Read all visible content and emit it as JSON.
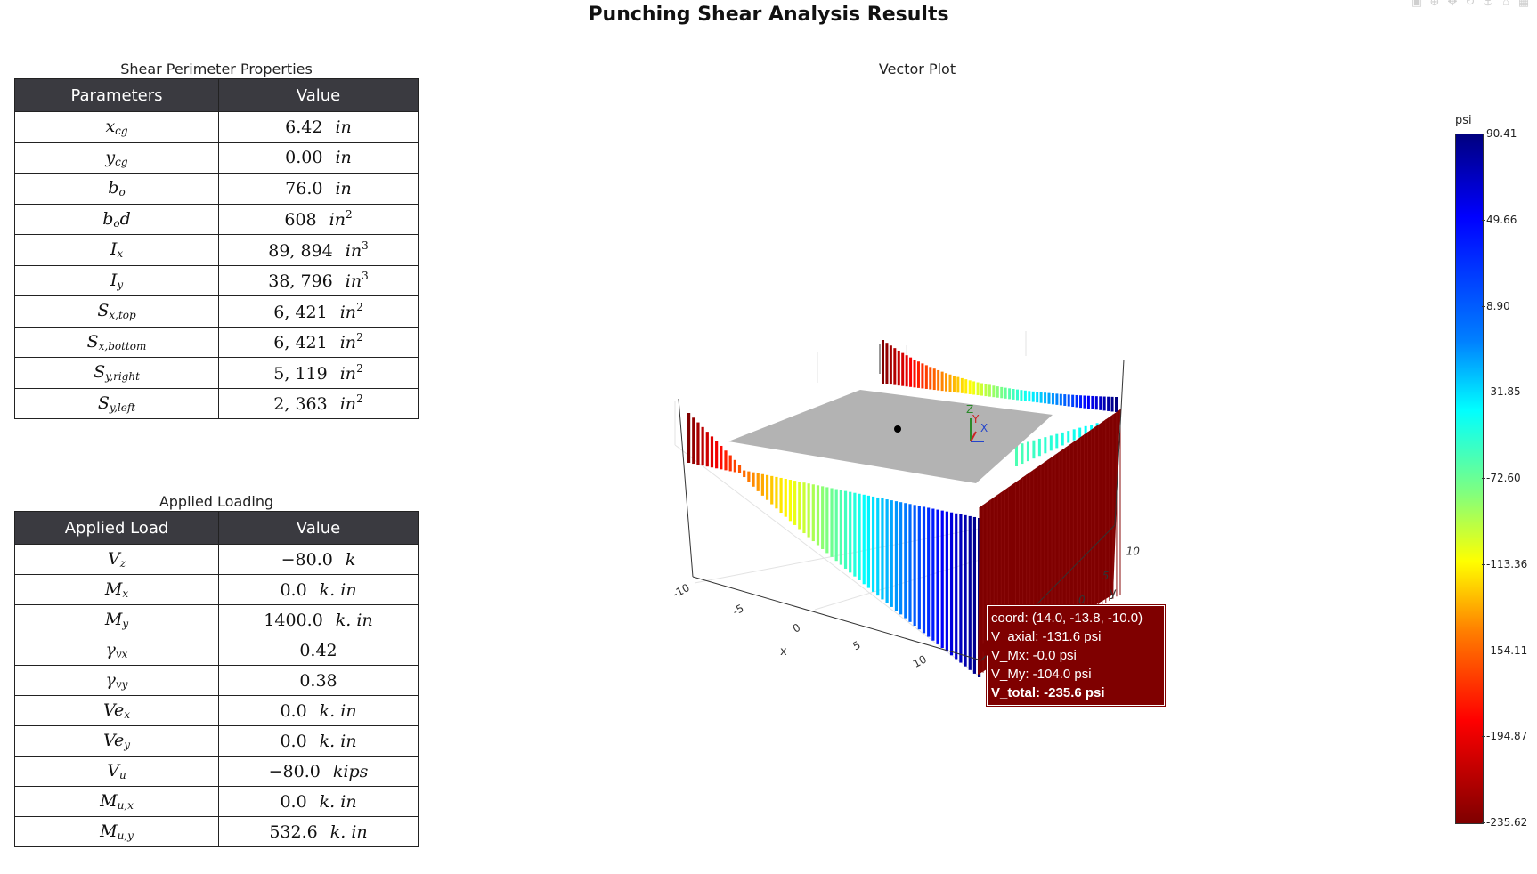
{
  "title": "Punching Shear Analysis Results",
  "shear_perimeter": {
    "title": "Shear Perimeter Properties",
    "headers": [
      "Parameters",
      "Value"
    ],
    "rows": [
      {
        "sym": "x",
        "sub": "cg",
        "value": "6.42",
        "unit": "in",
        "pow": ""
      },
      {
        "sym": "y",
        "sub": "cg",
        "value": "0.00",
        "unit": "in",
        "pow": ""
      },
      {
        "sym": "b",
        "sub": "o",
        "value": "76.0",
        "unit": "in",
        "pow": ""
      },
      {
        "sym": "b",
        "sub": "o",
        "tail": "d",
        "value": "608",
        "unit": "in",
        "pow": "2"
      },
      {
        "sym": "I",
        "sub": "x",
        "value": "89, 894",
        "unit": "in",
        "pow": "3"
      },
      {
        "sym": "I",
        "sub": "y",
        "value": "38, 796",
        "unit": "in",
        "pow": "3"
      },
      {
        "sym": "S",
        "sub": "x,top",
        "value": "6, 421",
        "unit": "in",
        "pow": "2"
      },
      {
        "sym": "S",
        "sub": "x,bottom",
        "value": "6, 421",
        "unit": "in",
        "pow": "2"
      },
      {
        "sym": "S",
        "sub": "y,right",
        "value": "5, 119",
        "unit": "in",
        "pow": "2"
      },
      {
        "sym": "S",
        "sub": "y,left",
        "value": "2, 363",
        "unit": "in",
        "pow": "2"
      }
    ]
  },
  "applied_loading": {
    "title": "Applied Loading",
    "headers": [
      "Applied Load",
      "Value"
    ],
    "rows": [
      {
        "sym": "V",
        "sub": "z",
        "value": "−80.0",
        "unit": "k",
        "pow": ""
      },
      {
        "sym": "M",
        "sub": "x",
        "value": "0.0",
        "unit": "k. in",
        "pow": ""
      },
      {
        "sym": "M",
        "sub": "y",
        "value": "1400.0",
        "unit": "k. in",
        "pow": ""
      },
      {
        "sym": "γ",
        "sub": "vx",
        "value": "0.42",
        "unit": "",
        "pow": ""
      },
      {
        "sym": "γ",
        "sub": "vy",
        "value": "0.38",
        "unit": "",
        "pow": ""
      },
      {
        "sym": "Ve",
        "sub": "x",
        "value": "0.0",
        "unit": "k. in",
        "pow": ""
      },
      {
        "sym": "Ve",
        "sub": "y",
        "value": "0.0",
        "unit": "k. in",
        "pow": ""
      },
      {
        "sym": "V",
        "sub": "u",
        "value": "−80.0",
        "unit": "kips",
        "pow": ""
      },
      {
        "sym": "M",
        "sub": "u,x",
        "value": "0.0",
        "unit": "k. in",
        "pow": ""
      },
      {
        "sym": "M",
        "sub": "u,y",
        "value": "532.6",
        "unit": "k. in",
        "pow": ""
      }
    ]
  },
  "chart_data": {
    "type": "3d-bar",
    "title": "Vector Plot",
    "x_axis": {
      "label": "x",
      "ticks": [
        -10,
        -5,
        0,
        5,
        10
      ]
    },
    "y_axis": {
      "label": "y",
      "ticks": [
        0,
        5,
        10
      ]
    },
    "z_axis": {
      "label": "z"
    },
    "axis_triad_labels": [
      "Z",
      "Y",
      "X"
    ],
    "colorbar": {
      "unit": "psi",
      "min": -235.62,
      "max": 90.41,
      "ticks": [
        "90.41",
        "49.66",
        "8.90",
        "-31.85",
        "-72.60",
        "-113.36",
        "-154.11",
        "-194.87",
        "-235.62"
      ]
    },
    "hover": {
      "coord": "coord: (14.0, -13.8, -10.0)",
      "v_axial": "V_axial: -131.6 psi",
      "v_mx": "V_Mx: -0.0 psi",
      "v_my": "V_My: -104.0 psi",
      "v_total": "V_total: -235.6 psi"
    },
    "colors": {
      "slab": "#b3b3b3",
      "bar_min": "#7f0000",
      "bar_max": "#00007f"
    }
  }
}
